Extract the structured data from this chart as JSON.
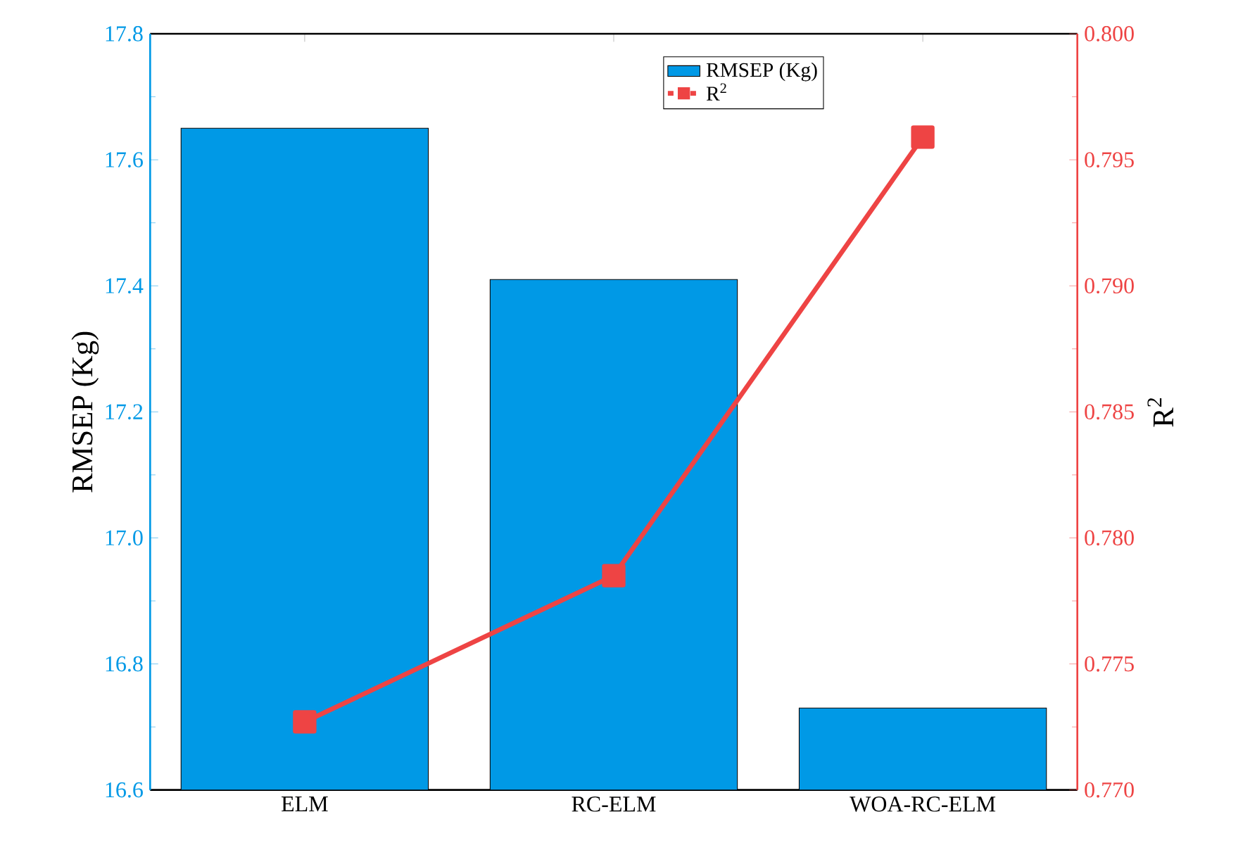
{
  "chart_data": {
    "type": "bar",
    "categories": [
      "ELM",
      "RC-ELM",
      "WOA-RC-ELM"
    ],
    "series": [
      {
        "name": "RMSEP (Kg)",
        "color": "#0099e6",
        "values": [
          17.65,
          17.41,
          16.73
        ]
      },
      {
        "name": "R$^{2}$",
        "type": "line",
        "axis": "y2",
        "color": "#ee4444",
        "values": [
          0.7727,
          0.7785,
          0.7959
        ]
      }
    ],
    "ylabel": "RMSEP (Kg)",
    "y2label": "R$^{2}$",
    "ylim": [
      16.6,
      17.8
    ],
    "yticks": [
      16.6,
      16.8,
      {
        "value": 17,
        "label": "17.0"
      },
      17.2,
      17.4,
      17.6,
      17.8
    ],
    "y2lim": [
      0.77,
      0.8
    ],
    "y2ticks": [
      {
        "value": 0.77,
        "label": "0.770"
      },
      {
        "value": 0.775,
        "label": "0.775"
      },
      {
        "value": 0.78,
        "label": "0.780"
      },
      {
        "value": 0.785,
        "label": "0.785"
      },
      {
        "value": 0.79,
        "label": "0.790"
      },
      {
        "value": 0.795,
        "label": "0.795"
      },
      {
        "value": 0.8,
        "label": "0.800"
      }
    ],
    "marker": "square",
    "legend": "top"
  }
}
